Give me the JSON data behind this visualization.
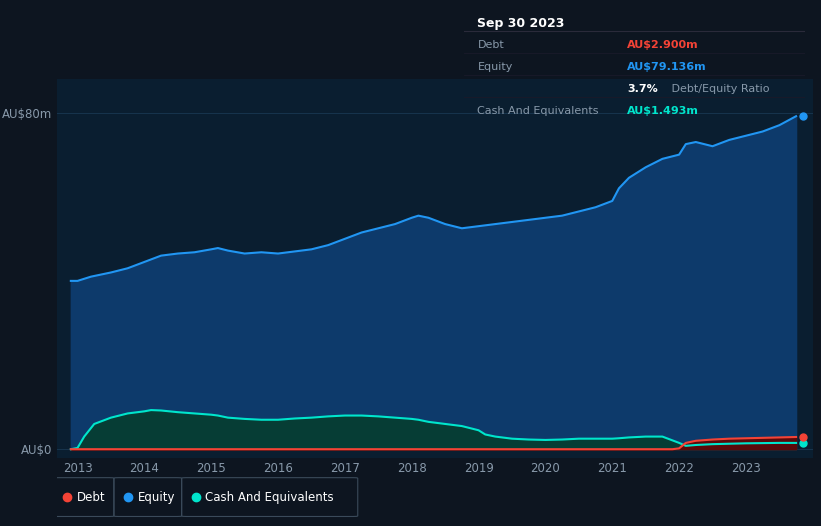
{
  "bg_color": "#0d1520",
  "plot_bg_color": "#0a1e30",
  "equity_color": "#2196f3",
  "equity_fill_color": "#0d3a6b",
  "debt_color": "#f44336",
  "cash_color": "#00e5cc",
  "cash_fill_color": "#063d35",
  "grid_color": "#1a3a55",
  "text_color": "#8899aa",
  "tick_color": "#8899aa",
  "ylabel_top": "AU$80m",
  "ylabel_bottom": "AU$0",
  "x_years": [
    2013,
    2014,
    2015,
    2016,
    2017,
    2018,
    2019,
    2020,
    2021,
    2022,
    2023
  ],
  "equity_data": [
    [
      2012.9,
      40
    ],
    [
      2013.0,
      40
    ],
    [
      2013.2,
      41
    ],
    [
      2013.5,
      42
    ],
    [
      2013.75,
      43
    ],
    [
      2014.0,
      44.5
    ],
    [
      2014.25,
      46
    ],
    [
      2014.5,
      46.5
    ],
    [
      2014.75,
      46.8
    ],
    [
      2015.0,
      47.5
    ],
    [
      2015.1,
      47.8
    ],
    [
      2015.25,
      47.2
    ],
    [
      2015.5,
      46.5
    ],
    [
      2015.75,
      46.8
    ],
    [
      2016.0,
      46.5
    ],
    [
      2016.25,
      47.0
    ],
    [
      2016.5,
      47.5
    ],
    [
      2016.75,
      48.5
    ],
    [
      2017.0,
      50.0
    ],
    [
      2017.25,
      51.5
    ],
    [
      2017.5,
      52.5
    ],
    [
      2017.75,
      53.5
    ],
    [
      2018.0,
      55.0
    ],
    [
      2018.1,
      55.5
    ],
    [
      2018.25,
      55.0
    ],
    [
      2018.5,
      53.5
    ],
    [
      2018.75,
      52.5
    ],
    [
      2019.0,
      53.0
    ],
    [
      2019.25,
      53.5
    ],
    [
      2019.5,
      54.0
    ],
    [
      2019.75,
      54.5
    ],
    [
      2020.0,
      55.0
    ],
    [
      2020.25,
      55.5
    ],
    [
      2020.5,
      56.5
    ],
    [
      2020.75,
      57.5
    ],
    [
      2021.0,
      59.0
    ],
    [
      2021.1,
      62.0
    ],
    [
      2021.25,
      64.5
    ],
    [
      2021.5,
      67.0
    ],
    [
      2021.75,
      69.0
    ],
    [
      2022.0,
      70.0
    ],
    [
      2022.1,
      72.5
    ],
    [
      2022.25,
      73.0
    ],
    [
      2022.5,
      72.0
    ],
    [
      2022.75,
      73.5
    ],
    [
      2023.0,
      74.5
    ],
    [
      2023.25,
      75.5
    ],
    [
      2023.5,
      77.0
    ],
    [
      2023.75,
      79.136
    ]
  ],
  "cash_data": [
    [
      2012.9,
      0.0
    ],
    [
      2013.0,
      0.3
    ],
    [
      2013.1,
      3.0
    ],
    [
      2013.25,
      6.0
    ],
    [
      2013.5,
      7.5
    ],
    [
      2013.75,
      8.5
    ],
    [
      2014.0,
      9.0
    ],
    [
      2014.1,
      9.3
    ],
    [
      2014.25,
      9.2
    ],
    [
      2014.5,
      8.8
    ],
    [
      2014.75,
      8.5
    ],
    [
      2015.0,
      8.2
    ],
    [
      2015.1,
      8.0
    ],
    [
      2015.25,
      7.5
    ],
    [
      2015.5,
      7.2
    ],
    [
      2015.75,
      7.0
    ],
    [
      2016.0,
      7.0
    ],
    [
      2016.25,
      7.3
    ],
    [
      2016.5,
      7.5
    ],
    [
      2016.75,
      7.8
    ],
    [
      2017.0,
      8.0
    ],
    [
      2017.25,
      8.0
    ],
    [
      2017.5,
      7.8
    ],
    [
      2017.75,
      7.5
    ],
    [
      2018.0,
      7.2
    ],
    [
      2018.1,
      7.0
    ],
    [
      2018.25,
      6.5
    ],
    [
      2018.5,
      6.0
    ],
    [
      2018.75,
      5.5
    ],
    [
      2019.0,
      4.5
    ],
    [
      2019.1,
      3.5
    ],
    [
      2019.25,
      3.0
    ],
    [
      2019.5,
      2.5
    ],
    [
      2019.75,
      2.3
    ],
    [
      2020.0,
      2.2
    ],
    [
      2020.25,
      2.3
    ],
    [
      2020.5,
      2.5
    ],
    [
      2020.75,
      2.5
    ],
    [
      2021.0,
      2.5
    ],
    [
      2021.1,
      2.6
    ],
    [
      2021.25,
      2.8
    ],
    [
      2021.5,
      3.0
    ],
    [
      2021.75,
      3.0
    ],
    [
      2022.0,
      1.5
    ],
    [
      2022.1,
      0.8
    ],
    [
      2022.25,
      1.0
    ],
    [
      2022.5,
      1.2
    ],
    [
      2022.75,
      1.3
    ],
    [
      2023.0,
      1.4
    ],
    [
      2023.25,
      1.45
    ],
    [
      2023.5,
      1.5
    ],
    [
      2023.75,
      1.493
    ]
  ],
  "debt_data": [
    [
      2012.9,
      0.0
    ],
    [
      2013.0,
      0.0
    ],
    [
      2021.9,
      0.0
    ],
    [
      2022.0,
      0.2
    ],
    [
      2022.1,
      1.5
    ],
    [
      2022.25,
      2.0
    ],
    [
      2022.5,
      2.3
    ],
    [
      2022.75,
      2.5
    ],
    [
      2023.0,
      2.6
    ],
    [
      2023.25,
      2.7
    ],
    [
      2023.5,
      2.8
    ],
    [
      2023.75,
      2.9
    ]
  ],
  "tooltip": {
    "title": "Sep 30 2023",
    "title_color": "#ffffff",
    "rows": [
      {
        "label": "Debt",
        "value": "AU$2.900m",
        "value_color": "#f44336"
      },
      {
        "label": "Equity",
        "value": "AU$79.136m",
        "value_color": "#2196f3"
      },
      {
        "label": "",
        "bold_part": "3.7%",
        "rest_part": " Debt/Equity Ratio"
      },
      {
        "label": "Cash And Equivalents",
        "value": "AU$1.493m",
        "value_color": "#00e5cc"
      }
    ],
    "label_color": "#8899aa",
    "ratio_bold_color": "#ffffff",
    "ratio_rest_color": "#8899aa",
    "bg_color": "#080c10",
    "border_color": "#333344"
  },
  "legend": [
    {
      "label": "Debt",
      "color": "#f44336"
    },
    {
      "label": "Equity",
      "color": "#2196f3"
    },
    {
      "label": "Cash And Equivalents",
      "color": "#00e5cc"
    }
  ],
  "ylim": [
    -2,
    88
  ],
  "xlim": [
    2012.7,
    2024.0
  ]
}
